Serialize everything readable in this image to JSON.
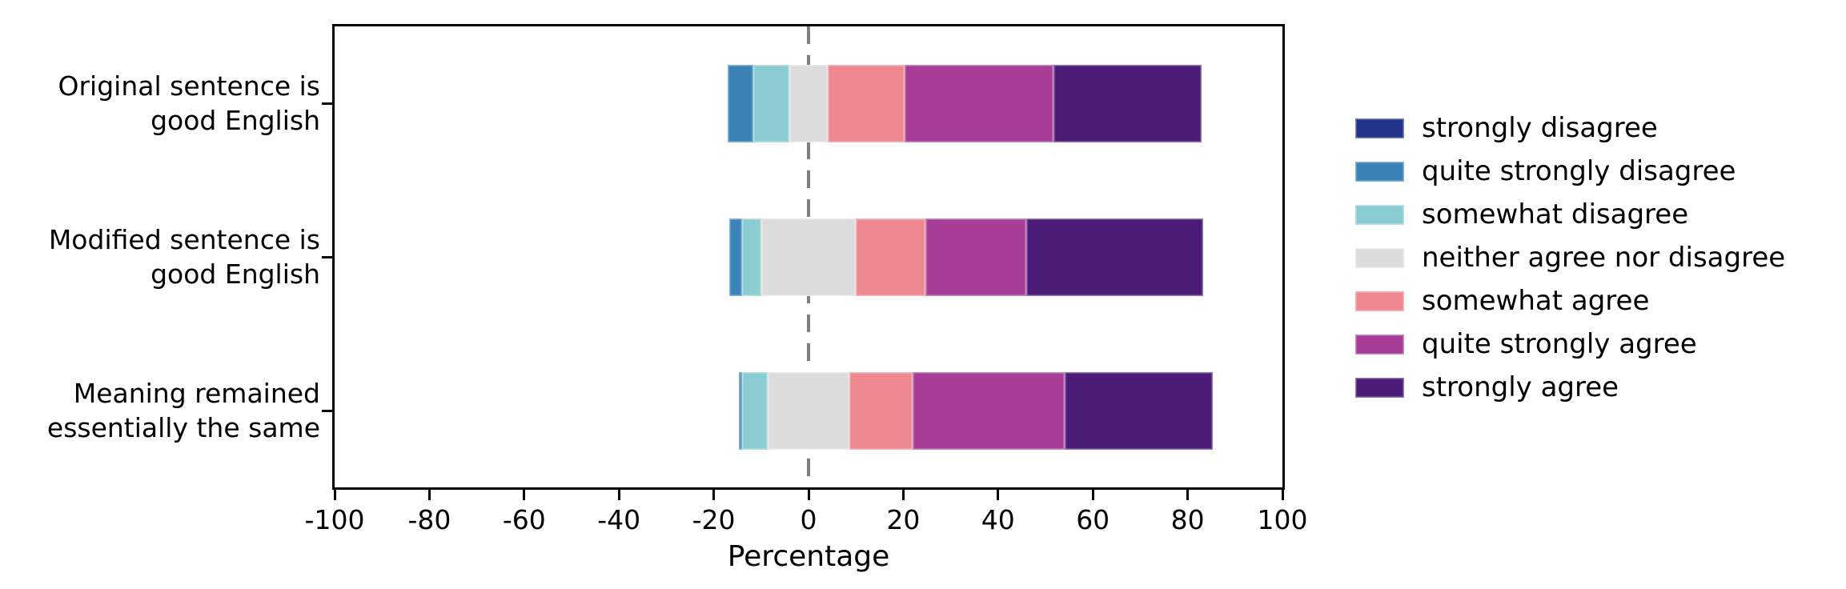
{
  "chart_data": {
    "type": "bar",
    "variant": "diverging-stacked-horizontal-likert",
    "title": "",
    "xlabel": "Percentage",
    "ylabel": "",
    "xlim": [
      -100,
      100
    ],
    "xticks": [
      -100,
      -80,
      -60,
      -40,
      -20,
      0,
      20,
      40,
      60,
      80,
      100
    ],
    "grid": false,
    "legend_position": "right",
    "zero_line": {
      "x": 0,
      "style": "dashed",
      "color": "#808080"
    },
    "alignment": "neutral category straddles zero (half left, half right)",
    "neutral_series": "neither agree nor disagree",
    "categories": [
      {
        "lines": [
          "Original sentence is",
          "good English"
        ]
      },
      {
        "lines": [
          "Modified sentence is",
          "good English"
        ]
      },
      {
        "lines": [
          "Meaning remained",
          "essentially the same"
        ]
      }
    ],
    "series": [
      {
        "name": "strongly disagree",
        "color": "#23338c",
        "values": [
          0.0,
          0.0,
          0.0
        ]
      },
      {
        "name": "quite strongly disagree",
        "color": "#3a82b8",
        "values": [
          5.4,
          2.7,
          0.7
        ]
      },
      {
        "name": "somewhat disagree",
        "color": "#8accd1",
        "values": [
          7.6,
          4.0,
          5.4
        ]
      },
      {
        "name": "neither agree nor disagree",
        "color": "#dcdcdc",
        "values": [
          8.2,
          20.0,
          17.3
        ]
      },
      {
        "name": "somewhat agree",
        "color": "#ef8790",
        "values": [
          16.1,
          14.6,
          13.3
        ]
      },
      {
        "name": "quite strongly agree",
        "color": "#a83d98",
        "values": [
          31.5,
          21.4,
          32.1
        ]
      },
      {
        "name": "strongly agree",
        "color": "#4c1b78",
        "values": [
          31.2,
          37.3,
          31.3
        ]
      }
    ]
  },
  "colors": {
    "spine": "#000000",
    "text": "#000000",
    "zero_line": "#808080",
    "background": "#ffffff"
  }
}
